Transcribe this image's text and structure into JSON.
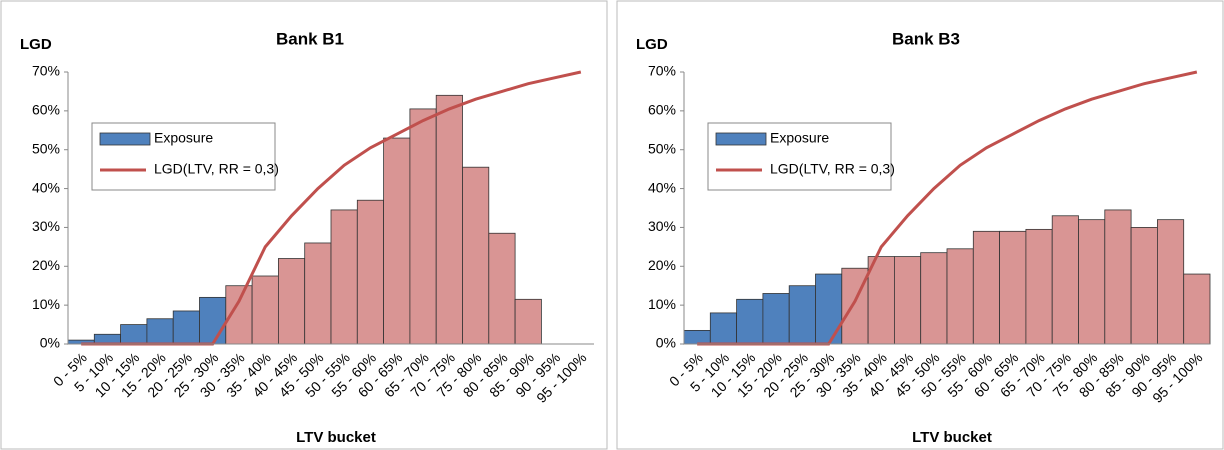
{
  "chart_data": [
    {
      "type": "bar",
      "title": "Bank B1",
      "y_label": "LGD",
      "x_label": "LTV bucket",
      "categories": [
        "0 - 5%",
        "5 - 10%",
        "10 - 15%",
        "15 - 20%",
        "20 - 25%",
        "25 - 30%",
        "30 - 35%",
        "35 - 40%",
        "40 - 45%",
        "45 - 50%",
        "50 - 55%",
        "55 - 60%",
        "60 - 65%",
        "65 - 70%",
        "70 - 75%",
        "75 - 80%",
        "80 - 85%",
        "85 - 90%",
        "90 - 95%",
        "95 - 100%"
      ],
      "series": [
        {
          "name": "Exposure",
          "type": "bar",
          "color": "#4f81bd",
          "colors": [
            "#4f81bd",
            "#4f81bd",
            "#4f81bd",
            "#4f81bd",
            "#4f81bd",
            "#4f81bd",
            "#d99594",
            "#d99594",
            "#d99594",
            "#d99594",
            "#d99594",
            "#d99594",
            "#d99594",
            "#d99594",
            "#d99594",
            "#d99594",
            "#d99594",
            "#d99594",
            "#d99594",
            "#d99594"
          ],
          "values": [
            1,
            2.5,
            5,
            6.5,
            8.5,
            12,
            15,
            17.5,
            22,
            26,
            34.5,
            37,
            53,
            60.5,
            64,
            45.5,
            28.5,
            11.5,
            0,
            0
          ]
        },
        {
          "name": "LGD(LTV, RR = 0,3)",
          "type": "line",
          "color": "#c0504d",
          "values": [
            0,
            0,
            0,
            0,
            0,
            0,
            11,
            25,
            33,
            40,
            46,
            50.5,
            54,
            57.5,
            60.5,
            63,
            65,
            67,
            68.5,
            70
          ]
        }
      ],
      "ylim": [
        0,
        70
      ],
      "yticks": [
        {
          "value": 0,
          "label": "0%"
        },
        {
          "value": 10,
          "label": "10%"
        },
        {
          "value": 20,
          "label": "20%"
        },
        {
          "value": 30,
          "label": "30%"
        },
        {
          "value": 40,
          "label": "40%"
        },
        {
          "value": 50,
          "label": "50%"
        },
        {
          "value": 60,
          "label": "60%"
        },
        {
          "value": 70,
          "label": "70%"
        }
      ]
    },
    {
      "type": "bar",
      "title": "Bank B3",
      "y_label": "LGD",
      "x_label": "LTV bucket",
      "categories": [
        "0 - 5%",
        "5 - 10%",
        "10 - 15%",
        "15 - 20%",
        "20 - 25%",
        "25 - 30%",
        "30 - 35%",
        "35 - 40%",
        "40 - 45%",
        "45 - 50%",
        "50 - 55%",
        "55 - 60%",
        "60 - 65%",
        "65 - 70%",
        "70 - 75%",
        "75 - 80%",
        "80 - 85%",
        "85 - 90%",
        "90 - 95%",
        "95 - 100%"
      ],
      "series": [
        {
          "name": "Exposure",
          "type": "bar",
          "color": "#4f81bd",
          "colors": [
            "#4f81bd",
            "#4f81bd",
            "#4f81bd",
            "#4f81bd",
            "#4f81bd",
            "#4f81bd",
            "#d99594",
            "#d99594",
            "#d99594",
            "#d99594",
            "#d99594",
            "#d99594",
            "#d99594",
            "#d99594",
            "#d99594",
            "#d99594",
            "#d99594",
            "#d99594",
            "#d99594",
            "#d99594"
          ],
          "values": [
            3.5,
            8,
            11.5,
            13,
            15,
            18,
            19.5,
            22.5,
            22.5,
            23.5,
            24.5,
            29,
            29,
            29.5,
            33,
            32,
            34.5,
            30,
            32,
            18
          ]
        },
        {
          "name": "LGD(LTV, RR = 0,3)",
          "type": "line",
          "color": "#c0504d",
          "values": [
            0,
            0,
            0,
            0,
            0,
            0,
            11,
            25,
            33,
            40,
            46,
            50.5,
            54,
            57.5,
            60.5,
            63,
            65,
            67,
            68.5,
            70
          ]
        }
      ],
      "ylim": [
        0,
        70
      ],
      "yticks": [
        {
          "value": 0,
          "label": "0%"
        },
        {
          "value": 10,
          "label": "10%"
        },
        {
          "value": 20,
          "label": "20%"
        },
        {
          "value": 30,
          "label": "30%"
        },
        {
          "value": 40,
          "label": "40%"
        },
        {
          "value": 50,
          "label": "50%"
        },
        {
          "value": 60,
          "label": "60%"
        },
        {
          "value": 70,
          "label": "70%"
        }
      ]
    }
  ]
}
